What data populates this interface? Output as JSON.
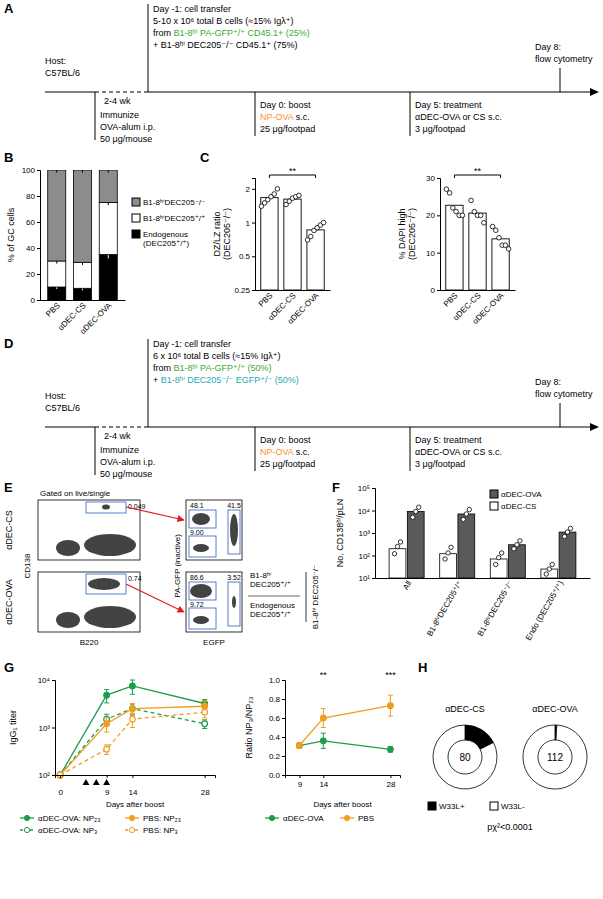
{
  "panel_labels": [
    "A",
    "B",
    "C",
    "D",
    "E",
    "F",
    "G",
    "H"
  ],
  "timelines": [
    {
      "host": [
        [
          {
            "text": "Host:"
          }
        ],
        [
          {
            "text": "C57BL/6"
          }
        ]
      ],
      "interval": "2-4 wk",
      "immunize": [
        [
          {
            "text": "Immunize"
          }
        ],
        [
          {
            "text": "OVA-alum i.p."
          }
        ],
        [
          {
            "text": "50 μg/mouse"
          }
        ]
      ],
      "transfer": [
        [
          {
            "text": "Day -1: cell transfer"
          }
        ],
        [
          {
            "text": "5-10 x 10⁶ total B cells (≈15% Igλ⁺)"
          }
        ],
        [
          {
            "text": "from "
          },
          {
            "text": "B1-8ʰⁱ PA-GFP⁺/⁺ CD45.1+ (25%)",
            "color": "#3ea935"
          }
        ],
        [
          {
            "text": "+ B1-8ʰⁱ DEC205⁻/⁻ CD45.1⁺ (75%)"
          }
        ]
      ],
      "boost": [
        [
          {
            "text": "Day 0: boost"
          }
        ],
        [
          {
            "text": "NP-OVA",
            "color": "#f7941d"
          },
          {
            "text": " s.c."
          }
        ],
        [
          {
            "text": "25 μg/footpad"
          }
        ]
      ],
      "treatment": [
        [
          {
            "text": "Day 5: treatment"
          }
        ],
        [
          {
            "text": "αDEC-OVA or CS s.c."
          }
        ],
        [
          {
            "text": "3 μg/footpad"
          }
        ]
      ],
      "readout": [
        [
          {
            "text": "Day 8:"
          }
        ],
        [
          {
            "text": "flow cytometry"
          }
        ]
      ]
    },
    {
      "host": [
        [
          {
            "text": "Host:"
          }
        ],
        [
          {
            "text": "C57BL/6"
          }
        ]
      ],
      "interval": "2-4 wk",
      "immunize": [
        [
          {
            "text": "Immunize"
          }
        ],
        [
          {
            "text": "OVA-alum i.p."
          }
        ],
        [
          {
            "text": "50 μg/mouse"
          }
        ]
      ],
      "transfer": [
        [
          {
            "text": "Day -1: cell transfer"
          }
        ],
        [
          {
            "text": "6 x 10⁶ total B cells (≈15% Igλ⁺)"
          }
        ],
        [
          {
            "text": "from "
          },
          {
            "text": "B1-8ʰⁱ PA-GFP⁺/⁺ (50%)",
            "color": "#3ea935"
          }
        ],
        [
          {
            "text": "+ "
          },
          {
            "text": "B1-8ʰⁱ DEC205⁻/⁻ EGFP⁺/⁻ (50%)",
            "color": "#27aab5"
          }
        ]
      ],
      "boost": [
        [
          {
            "text": "Day 0: boost"
          }
        ],
        [
          {
            "text": "NP-OVA",
            "color": "#f7941d"
          },
          {
            "text": " s.c."
          }
        ],
        [
          {
            "text": "25 μg/footpad"
          }
        ]
      ],
      "treatment": [
        [
          {
            "text": "Day 5: treatment"
          }
        ],
        [
          {
            "text": "αDEC-OVA or CS s.c."
          }
        ],
        [
          {
            "text": "3 μg/footpad"
          }
        ]
      ],
      "readout": [
        [
          {
            "text": "Day 8:"
          }
        ],
        [
          {
            "text": "flow cytometry"
          }
        ]
      ]
    }
  ],
  "flow_cytometry": {
    "title": "Gated on live/single",
    "xlabel_left": "B220",
    "ylabel_left": "CD138",
    "xlabel_right": "EGFP",
    "ylabel_right": "PA-GFP (inactive)",
    "rows": [
      {
        "label": "αDEC-CS",
        "gate": "0.049",
        "populations": [
          "48.1",
          "41.5",
          "9.00"
        ]
      },
      {
        "label": "αDEC-OVA",
        "gate": "0.74",
        "populations": [
          "86.6",
          "3.52",
          "9.72"
        ]
      }
    ],
    "legend": [
      "B1-8ʰⁱ DEC205⁺/⁺",
      "Endogenous DEC205⁺/⁺",
      "B1-8ʰⁱ DEC205⁻/⁻"
    ]
  },
  "chart_data": [
    {
      "type": "bar",
      "stacked": true,
      "categories": [
        "PBS",
        "αDEC-CS",
        "αDEC-OVA"
      ],
      "ylabel": "% of GC cells",
      "ylim": [
        0,
        100
      ],
      "yticks": [
        0,
        20,
        40,
        60,
        80,
        100
      ],
      "legend": "right",
      "series": [
        {
          "name": "Endogenous (DEC205⁺/⁺)",
          "color": "#000000",
          "values": [
            10,
            9,
            35
          ],
          "errors": [
            1.5,
            1.5,
            3
          ]
        },
        {
          "name": "B1-8ʰⁱDEC205⁺/⁺",
          "color": "#ffffff",
          "values": [
            20,
            20,
            40
          ],
          "errors": [
            2,
            2,
            2
          ]
        },
        {
          "name": "B1-8ʰⁱDEC205⁻/⁻",
          "color": "#8c8c8c",
          "values": [
            70,
            71,
            25
          ],
          "errors": [
            2,
            2,
            2
          ]
        }
      ]
    },
    {
      "type": "bar",
      "categories": [
        "PBS",
        "αDEC-CS",
        "αDEC-OVA"
      ],
      "ylabel": [
        "DZ/LZ ratio",
        "(DEC205⁻/⁻)"
      ],
      "log": "y",
      "ylim": [
        0.25,
        2.5
      ],
      "yticks": [
        0.25,
        0.5,
        1,
        2
      ],
      "color": "#ffffff",
      "values": [
        1.67,
        1.62,
        0.86
      ],
      "points": [
        [
          1.4,
          1.5,
          1.6,
          1.7,
          1.8,
          2.0
        ],
        [
          1.45,
          1.55,
          1.65,
          1.7,
          1.75
        ],
        [
          0.7,
          0.75,
          0.85,
          0.9,
          0.95,
          1.0
        ]
      ],
      "annotations": [
        {
          "from": 0,
          "to": 2,
          "text": "**"
        }
      ]
    },
    {
      "type": "bar",
      "categories": [
        "PBS",
        "αDEC-CS",
        "αDEC-OVA"
      ],
      "ylabel": [
        "% DAPI high",
        "(DEC205⁻/⁻)"
      ],
      "ylim": [
        0,
        30
      ],
      "yticks": [
        0,
        10,
        20,
        30
      ],
      "color": "#ffffff",
      "values": [
        22.7,
        20.6,
        13.7
      ],
      "points": [
        [
          27,
          26,
          22,
          21,
          20,
          20
        ],
        [
          24,
          21,
          20,
          20,
          18
        ],
        [
          17,
          16,
          14,
          12,
          12,
          11
        ]
      ],
      "annotations": [
        {
          "from": 0,
          "to": 2,
          "text": "**"
        }
      ]
    },
    {
      "type": "bar",
      "categories": [
        "All",
        "B1-8ʰⁱDEC205⁺/⁺",
        "B1-8ʰⁱDEC205⁻/⁻",
        "Endo (DEC205⁺/⁺)"
      ],
      "ylabel": "No. CD138ʰⁱ/pLN",
      "log": "y",
      "ylim": [
        10,
        100000
      ],
      "yticks": [
        {
          "value": 10,
          "label": "10¹"
        },
        {
          "value": 100,
          "label": "10²"
        },
        {
          "value": 1000,
          "label": "10³"
        },
        {
          "value": 10000,
          "label": "10⁴"
        },
        {
          "value": 100000,
          "label": "10⁵"
        }
      ],
      "legend": "upper right",
      "series": [
        {
          "name": "αDEC-OVA",
          "color": "#5a5a5a",
          "values": [
            9000,
            7000,
            300,
            1100
          ],
          "points": [
            [
              5000,
              9000,
              14000
            ],
            [
              4000,
              7000,
              11000
            ],
            [
              200,
              300,
              450
            ],
            [
              700,
              1100,
              1600
            ]
          ]
        },
        {
          "name": "αDEC-CS",
          "color": "#ffffff",
          "values": [
            200,
            120,
            70,
            25
          ],
          "points": [
            [
              120,
              250,
              400
            ],
            [
              70,
              130,
              230
            ],
            [
              40,
              80,
              130
            ],
            [
              15,
              25,
              40
            ]
          ]
        }
      ]
    },
    {
      "type": "line",
      "log": "y",
      "x": [
        0,
        9,
        14,
        28
      ],
      "xlim": [
        -1,
        30
      ],
      "xticks": [
        0,
        9,
        14,
        28
      ],
      "ylim": [
        100,
        10000
      ],
      "yticks": [
        {
          "value": 100,
          "label": "10²"
        },
        {
          "value": 1000,
          "label": "10³"
        },
        {
          "value": 10000,
          "label": "10⁴"
        }
      ],
      "xlabel": "Days after boost",
      "ylabel": "IgG₁ titer",
      "treatment_days": [
        5,
        7,
        9
      ],
      "legend": "bottom",
      "series": [
        {
          "name": "αDEC-OVA: NP₂₃",
          "color": "#1b9e4b",
          "line_style": "solid",
          "marker": "circle",
          "values": [
            100,
            4800,
            7500,
            3200
          ],
          "errors": [
            0,
            1500,
            2500,
            700
          ]
        },
        {
          "name": "αDEC-OVA: NP₃",
          "color": "#1b9e4b",
          "line_style": "dashed",
          "marker": "open-circle",
          "values": [
            100,
            1500,
            2500,
            1200
          ],
          "errors": [
            0,
            400,
            600,
            250
          ]
        },
        {
          "name": "PBS: NP₂₃",
          "color": "#f39c1f",
          "line_style": "solid",
          "marker": "circle",
          "values": [
            100,
            1200,
            2500,
            2800
          ],
          "errors": [
            0,
            400,
            700,
            800
          ]
        },
        {
          "name": "PBS: NP₃",
          "color": "#f39c1f",
          "line_style": "dashed",
          "marker": "open-circle",
          "values": [
            100,
            350,
            1500,
            2100
          ],
          "errors": [
            0,
            80,
            500,
            500
          ]
        }
      ]
    },
    {
      "type": "line",
      "x": [
        9,
        14,
        28
      ],
      "xlim": [
        6,
        30
      ],
      "xticks": [
        9,
        14,
        28
      ],
      "ylim": [
        0,
        1
      ],
      "yticks": [
        {
          "value": 0,
          "label": "0.0"
        },
        0.2,
        0.4,
        0.6,
        0.8,
        {
          "value": 1,
          "label": "1.0"
        }
      ],
      "xlabel": "Days after boost",
      "ylabel": "Ratio NP₃/NP₂₃",
      "legend": "bottom",
      "annotations": [
        {
          "x": 14,
          "text": "**"
        },
        {
          "x": 28,
          "text": "***"
        }
      ],
      "series": [
        {
          "name": "αDEC-OVA",
          "color": "#1b9e4b",
          "line_style": "solid",
          "marker": "circle",
          "values": [
            0.31,
            0.36,
            0.27
          ],
          "errors": [
            0.03,
            0.08,
            0.03
          ]
        },
        {
          "name": "PBS",
          "color": "#f39c1f",
          "line_style": "solid",
          "marker": "circle",
          "values": [
            0.31,
            0.6,
            0.73
          ],
          "errors": [
            0.03,
            0.1,
            0.11
          ]
        }
      ]
    },
    {
      "type": "pie",
      "categories": [
        "W33L+",
        "W33L-"
      ],
      "colors": [
        "#000000",
        "#ffffff"
      ],
      "pies": [
        {
          "title": "αDEC-CS",
          "center_label": "80",
          "values": [
            14,
            66
          ]
        },
        {
          "title": "αDEC-OVA",
          "center_label": "112",
          "values": [
            1,
            111
          ]
        }
      ],
      "annotation": "pχ²<0.0001"
    }
  ]
}
